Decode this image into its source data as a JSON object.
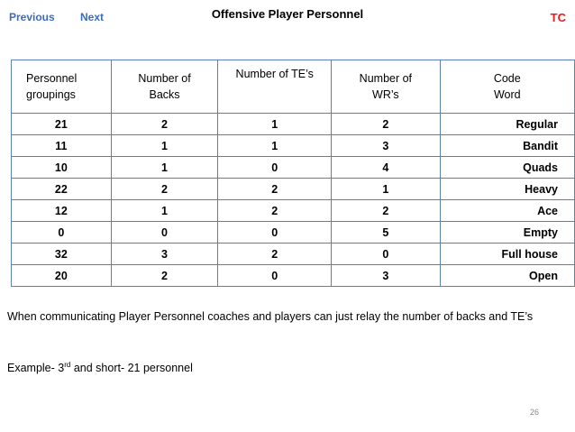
{
  "nav": {
    "previous": "Previous",
    "next": "Next",
    "tc": "TC"
  },
  "title": "Offensive Player Personnel",
  "table": {
    "headers": [
      [
        "Personnel",
        "groupings"
      ],
      [
        "Number of",
        "Backs"
      ],
      [
        "Number of TE’s"
      ],
      [
        "Number of",
        "WR’s"
      ],
      [
        "Code",
        "Word"
      ]
    ],
    "rows": [
      [
        "21",
        "2",
        "1",
        "2",
        "Regular"
      ],
      [
        "11",
        "1",
        "1",
        "3",
        "Bandit"
      ],
      [
        "10",
        "1",
        "0",
        "4",
        "Quads"
      ],
      [
        "22",
        "2",
        "2",
        "1",
        "Heavy"
      ],
      [
        "12",
        "1",
        "2",
        "2",
        "Ace"
      ],
      [
        "0",
        "0",
        "0",
        "5",
        "Empty"
      ],
      [
        "32",
        "3",
        "2",
        "0",
        "Full house"
      ],
      [
        "20",
        "2",
        "0",
        "3",
        "Open"
      ]
    ]
  },
  "notes": {
    "communication": "When communicating Player Personnel coaches and players can just relay the number of backs and TE’s",
    "example_prefix": "Example- 3",
    "example_sup": "rd",
    "example_suffix": " and short- 21 personnel"
  },
  "page_number": "26",
  "colors": {
    "nav_link": "#3a6bbf",
    "tc": "#e02020",
    "table_border": "#5b7fb6"
  }
}
